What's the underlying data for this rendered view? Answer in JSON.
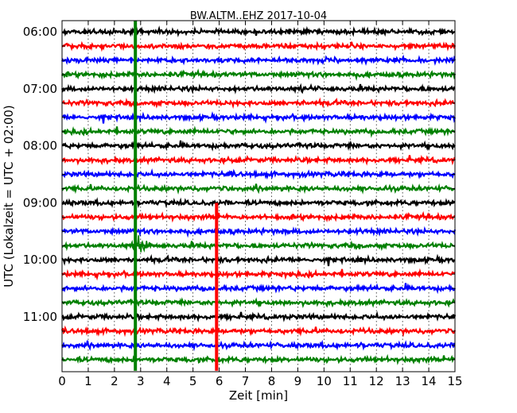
{
  "chart_data": {
    "type": "line",
    "title": "BW.ALTM..EHZ 2017-10-04",
    "xlabel": "Zeit  [min]",
    "ylabel": "UTC (Lokalzeit = UTC + 02:00)",
    "xlim": [
      0,
      15
    ],
    "x_ticks": [
      0,
      1,
      2,
      3,
      4,
      5,
      6,
      7,
      8,
      9,
      10,
      11,
      12,
      13,
      14,
      15
    ],
    "x_tick_labels": [
      "0",
      "1",
      "2",
      "3",
      "4",
      "5",
      "6",
      "7",
      "8",
      "9",
      "10",
      "11",
      "12",
      "13",
      "14",
      "15"
    ],
    "y_tick_labels": [
      "06:00",
      "07:00",
      "08:00",
      "09:00",
      "10:00",
      "11:00"
    ],
    "grid": "vertical dotted",
    "trace_colors": [
      "#000000",
      "#ff0000",
      "#0000ff",
      "#008000"
    ],
    "traces": [
      "06:00",
      "06:15",
      "06:30",
      "06:45",
      "07:00",
      "07:15",
      "07:30",
      "07:45",
      "08:00",
      "08:15",
      "08:30",
      "08:45",
      "09:00",
      "09:15",
      "09:30",
      "09:45",
      "10:00",
      "10:15",
      "10:30",
      "10:45",
      "11:00",
      "11:15",
      "11:30",
      "11:45"
    ],
    "events": [
      {
        "start_trace": "05:45",
        "end_trace": "11:45",
        "x_min": 2.8,
        "color": "#008000"
      },
      {
        "start_trace": "09:00",
        "end_trace": "11:45",
        "x_min": 5.9,
        "color": "#ff0000"
      }
    ]
  }
}
